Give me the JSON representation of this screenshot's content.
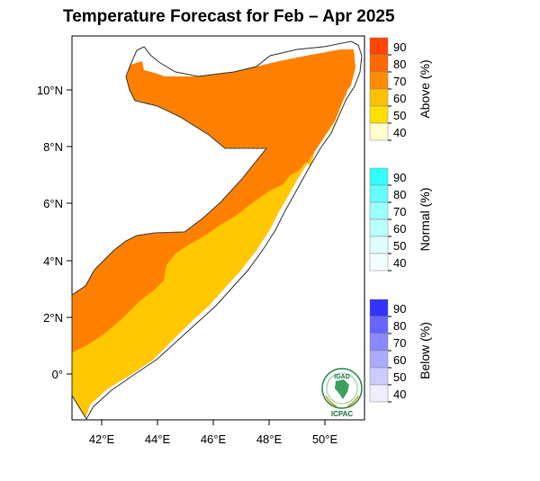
{
  "map": {
    "title": "Temperature Forecast for Feb – Apr 2025",
    "lon_ticks": [
      "42°E",
      "44°E",
      "46°E",
      "48°E",
      "50°E"
    ],
    "lat_ticks": [
      "10°N",
      "8°N",
      "6°N",
      "4°N",
      "2°N",
      "0°"
    ],
    "forecast_region": "Somalia",
    "colors": {
      "above_70": "#ff8000",
      "above_60": "#ffc800",
      "above_50": "#ffd700",
      "above_40": "#ffffcc"
    }
  },
  "legend": [
    {
      "title": "Above (%)",
      "ticks": [
        "90",
        "80",
        "70",
        "60",
        "50",
        "40"
      ],
      "colors": [
        "#ff4500",
        "#ff6a00",
        "#ff8c00",
        "#ffc000",
        "#ffe000",
        "#ffffcc"
      ]
    },
    {
      "title": "Normal (%)",
      "ticks": [
        "90",
        "80",
        "70",
        "60",
        "50",
        "40"
      ],
      "colors": [
        "#33ffff",
        "#66ffff",
        "#99ffff",
        "#bbffff",
        "#ddffff",
        "#f2ffff"
      ]
    },
    {
      "title": "Below (%)",
      "ticks": [
        "90",
        "80",
        "70",
        "60",
        "50",
        "40"
      ],
      "colors": [
        "#3333ff",
        "#6666ff",
        "#8888ff",
        "#aaaaff",
        "#ccccff",
        "#eeeeff"
      ]
    }
  ],
  "logo": {
    "top_text": "IGAD",
    "bottom_text": "ICPAC"
  }
}
